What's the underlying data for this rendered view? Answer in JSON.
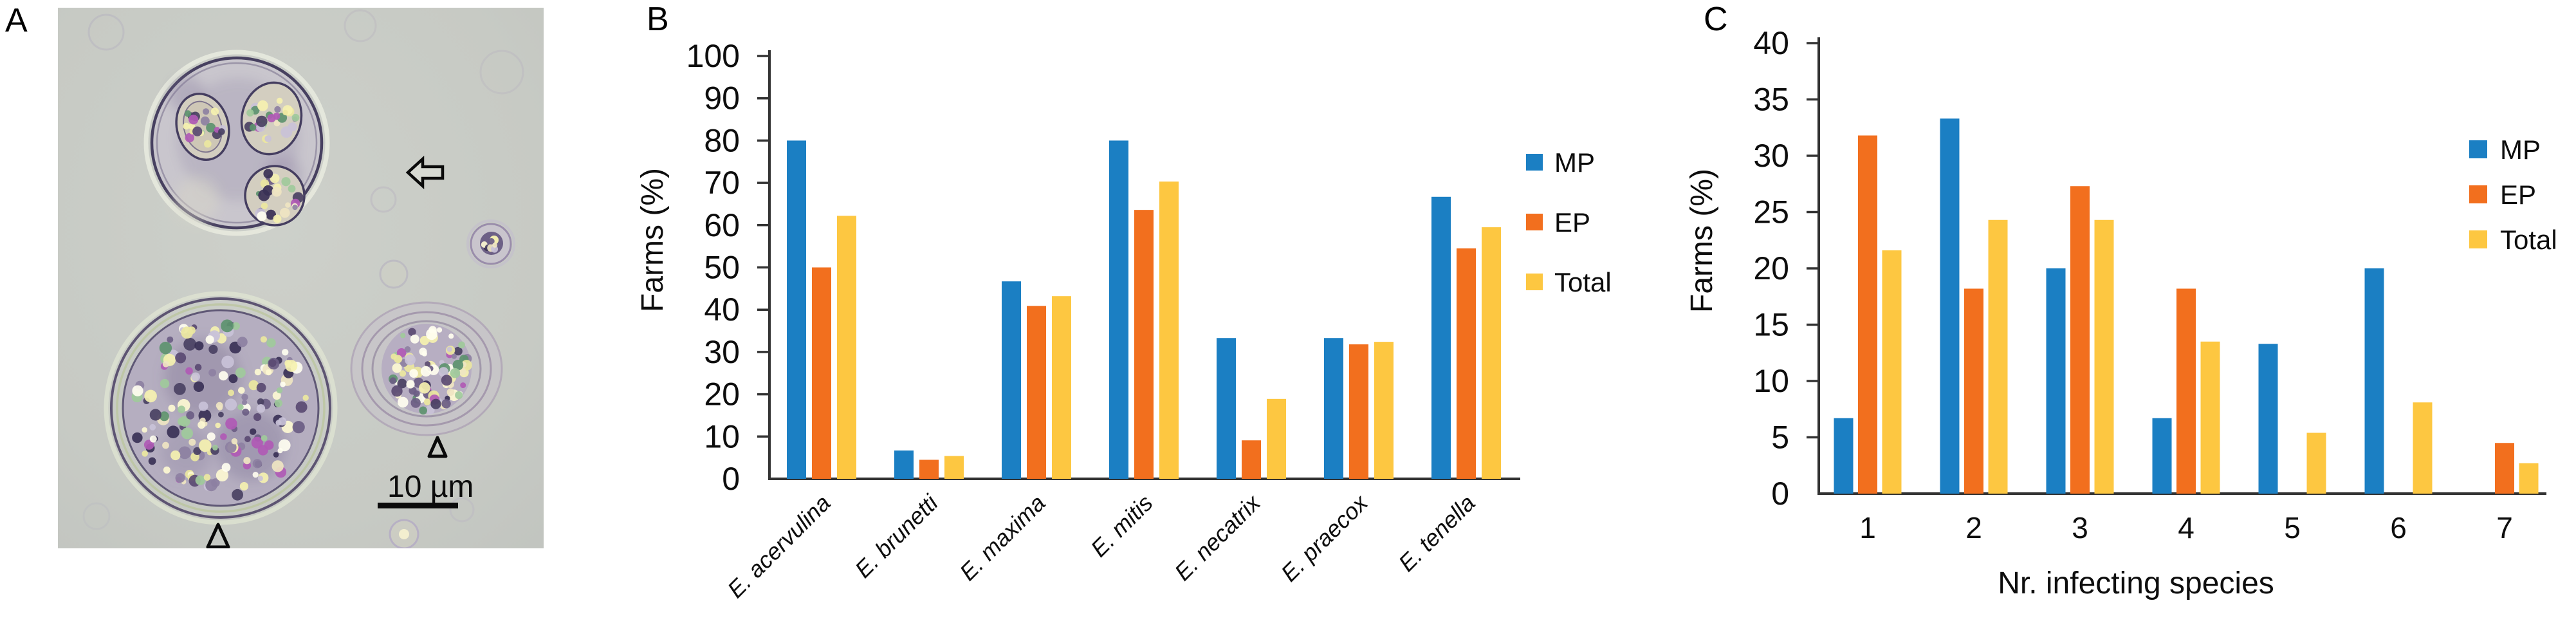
{
  "figure_labels": {
    "a": "A",
    "b": "B",
    "c": "C"
  },
  "panel_a": {
    "type": "micrograph",
    "scale_bar_label": "10 µm",
    "markers": [
      {
        "icon": "open-arrow-icon",
        "points_to": "sporulated-oocyst"
      },
      {
        "icon": "open-triangle-icon",
        "points_to": "unsporulated-oocyst-medium"
      },
      {
        "icon": "open-triangle-icon",
        "points_to": "unsporulated-oocyst-large"
      }
    ]
  },
  "colors": {
    "mp": "#1b7fc3",
    "ep": "#f26f1e",
    "total": "#fdc741",
    "axis": "#333333"
  },
  "chart_data": [
    {
      "id": "B",
      "type": "bar",
      "title": "",
      "xlabel": "",
      "ylabel": "Farms (%)",
      "ylim": [
        0,
        100
      ],
      "ytick_step": 10,
      "grid": false,
      "legend_position": "right",
      "category_style": "italic-rotated-45",
      "categories": [
        "E. acervulina",
        "E. brunetti",
        "E. maxima",
        "E. mitis",
        "E. necatrix",
        "E. praecox",
        "E. tenella"
      ],
      "series": [
        {
          "name": "MP",
          "color": "#1b7fc3",
          "values": [
            80,
            6.7,
            46.7,
            80,
            33.3,
            33.3,
            66.7
          ]
        },
        {
          "name": "EP",
          "color": "#f26f1e",
          "values": [
            50,
            4.5,
            40.9,
            63.6,
            9.1,
            31.8,
            54.5
          ]
        },
        {
          "name": "Total",
          "color": "#fdc741",
          "values": [
            62.2,
            5.4,
            43.2,
            70.3,
            18.9,
            32.4,
            59.5
          ]
        }
      ]
    },
    {
      "id": "C",
      "type": "bar",
      "title": "",
      "xlabel": "Nr. infecting species",
      "ylabel": "Farms (%)",
      "ylim": [
        0,
        40
      ],
      "ytick_step": 5,
      "grid": false,
      "legend_position": "right",
      "category_style": "plain",
      "categories": [
        "1",
        "2",
        "3",
        "4",
        "5",
        "6",
        "7"
      ],
      "series": [
        {
          "name": "MP",
          "color": "#1b7fc3",
          "values": [
            6.7,
            33.3,
            20,
            6.7,
            13.3,
            20,
            0
          ]
        },
        {
          "name": "EP",
          "color": "#f26f1e",
          "values": [
            31.8,
            18.2,
            27.3,
            18.2,
            0,
            0,
            4.5
          ]
        },
        {
          "name": "Total",
          "color": "#fdc741",
          "values": [
            21.6,
            24.3,
            24.3,
            13.5,
            5.4,
            8.1,
            2.7
          ]
        }
      ]
    }
  ]
}
